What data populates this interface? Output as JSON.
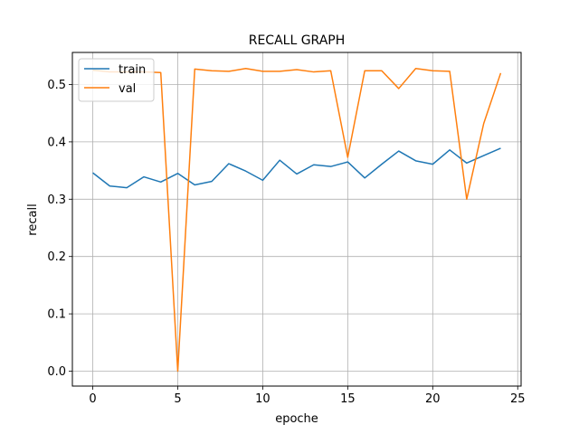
{
  "chart_data": {
    "type": "line",
    "title": "RECALL GRAPH",
    "xlabel": "epoche",
    "ylabel": "recall",
    "xlim": [
      -1.2,
      25.2
    ],
    "ylim": [
      -0.026,
      0.556
    ],
    "xticks": [
      0,
      5,
      10,
      15,
      20,
      25
    ],
    "yticks": [
      0.0,
      0.1,
      0.2,
      0.3,
      0.4,
      0.5
    ],
    "grid": true,
    "legend": "top-left",
    "x": [
      0,
      1,
      2,
      3,
      4,
      5,
      6,
      7,
      8,
      9,
      10,
      11,
      12,
      13,
      14,
      15,
      16,
      17,
      18,
      19,
      20,
      21,
      22,
      23,
      24
    ],
    "series": [
      {
        "name": "train",
        "color": "#1f77b4",
        "values": [
          0.346,
          0.323,
          0.32,
          0.339,
          0.33,
          0.345,
          0.325,
          0.331,
          0.362,
          0.349,
          0.333,
          0.368,
          0.344,
          0.36,
          0.357,
          0.365,
          0.337,
          0.361,
          0.384,
          0.367,
          0.361,
          0.386,
          0.363,
          0.376,
          0.389
        ]
      },
      {
        "name": "val",
        "color": "#ff7f0e",
        "values": [
          0.525,
          0.522,
          0.522,
          0.522,
          0.521,
          0.0,
          0.527,
          0.524,
          0.523,
          0.528,
          0.523,
          0.523,
          0.526,
          0.522,
          0.524,
          0.373,
          0.524,
          0.524,
          0.493,
          0.528,
          0.524,
          0.523,
          0.3,
          0.432,
          0.52
        ]
      }
    ]
  }
}
